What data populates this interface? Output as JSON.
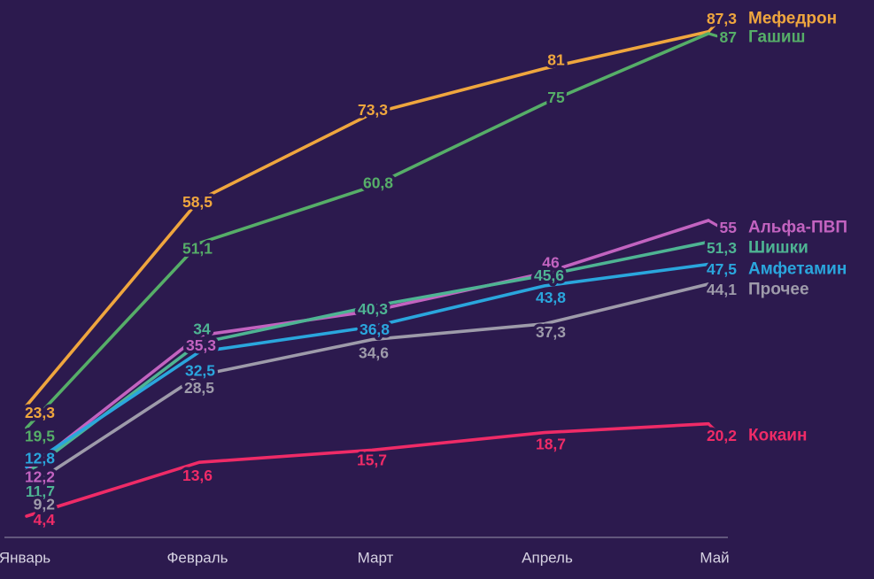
{
  "chart_data": {
    "type": "line",
    "title": "",
    "xlabel": "",
    "ylabel": "",
    "categories": [
      "Январь",
      "Февраль",
      "Март",
      "Апрель",
      "Май"
    ],
    "series": [
      {
        "id": "mefedron",
        "name": "Мефедрон",
        "color": "#efa63e",
        "values": [
          23.3,
          58.5,
          73.3,
          81,
          87.3
        ]
      },
      {
        "id": "gashish",
        "name": "Гашиш",
        "color": "#56ae68",
        "values": [
          19.5,
          51.1,
          60.8,
          75,
          87
        ]
      },
      {
        "id": "alfa-pvp",
        "name": "Альфа-ПВП",
        "color": "#c263c0",
        "values": [
          12.2,
          35.3,
          39.5,
          46,
          55
        ]
      },
      {
        "id": "shishki",
        "name": "Шишки",
        "color": "#4eb493",
        "values": [
          11.7,
          34,
          40.3,
          45.6,
          51.3
        ]
      },
      {
        "id": "amfetamin",
        "name": "Амфетамин",
        "color": "#2aa6dd",
        "values": [
          12.8,
          32.5,
          36.8,
          43.8,
          47.5
        ]
      },
      {
        "id": "prochee",
        "name": "Прочее",
        "color": "#9e9baa",
        "values": [
          9.2,
          28.5,
          34.6,
          37.3,
          44.1
        ]
      },
      {
        "id": "kokain",
        "name": "Кокаин",
        "color": "#ef2b67",
        "values": [
          4.4,
          13.6,
          15.7,
          18.7,
          20.2
        ]
      }
    ],
    "visible_point_labels": {
      "mefedron": [
        "23,3",
        "58,5",
        "73,3",
        "81",
        "87,3"
      ],
      "gashish": [
        "19,5",
        "51,1",
        "60,8",
        "75",
        "87"
      ],
      "alfa-pvp": [
        "12,2",
        "35,3",
        null,
        "46",
        "55"
      ],
      "shishki": [
        "11,7",
        "34",
        "40,3",
        "45,6",
        "51,3"
      ],
      "amfetamin": [
        "12,8",
        "32,5",
        "36,8",
        "43,8",
        "47,5"
      ],
      "prochee": [
        "9,2",
        "28,5",
        "34,6",
        "37,3",
        "44,1"
      ],
      "kokain": [
        "4,4",
        "13,6",
        "15,7",
        "18,7",
        "20,2"
      ]
    },
    "ylim": [
      0,
      90
    ],
    "grid": false,
    "legend_position": "right-inline",
    "background_color": "#2c1a4e",
    "axis_line_color": "#837c98",
    "tick_label_color": "#d6d2e2"
  }
}
